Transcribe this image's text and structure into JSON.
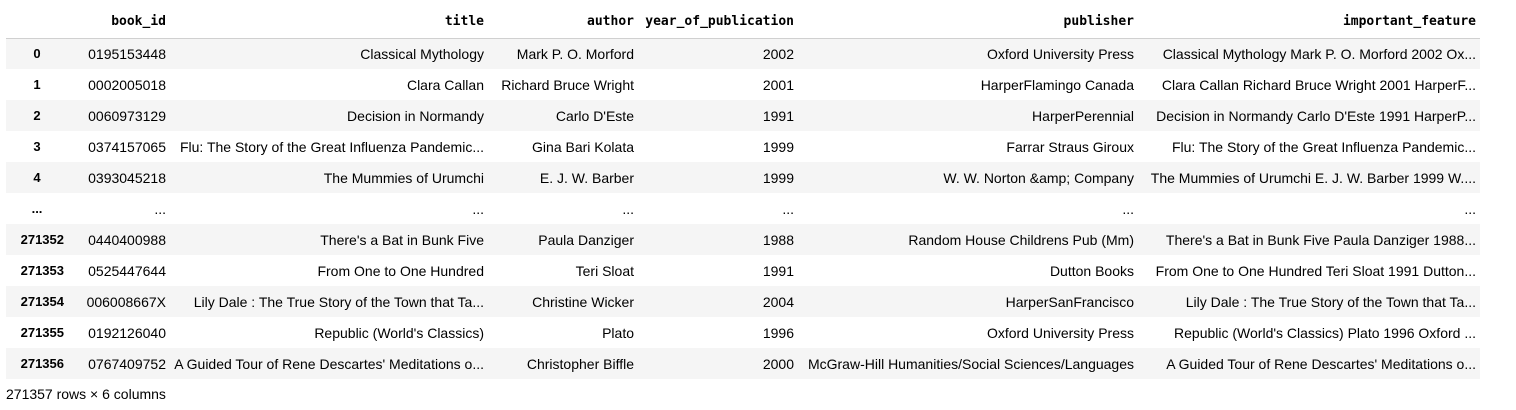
{
  "columns": {
    "index": "",
    "book_id": "book_id",
    "title": "title",
    "author": "author",
    "year_of_publication": "year_of_publication",
    "publisher": "publisher",
    "important_feature": "important_feature"
  },
  "rows": [
    {
      "index": "0",
      "book_id": "0195153448",
      "title": "Classical Mythology",
      "author": "Mark P. O. Morford",
      "year": "2002",
      "publisher": "Oxford University Press",
      "feature": "Classical Mythology Mark P. O. Morford 2002 Ox..."
    },
    {
      "index": "1",
      "book_id": "0002005018",
      "title": "Clara Callan",
      "author": "Richard Bruce Wright",
      "year": "2001",
      "publisher": "HarperFlamingo Canada",
      "feature": "Clara Callan Richard Bruce Wright 2001 HarperF..."
    },
    {
      "index": "2",
      "book_id": "0060973129",
      "title": "Decision in Normandy",
      "author": "Carlo D'Este",
      "year": "1991",
      "publisher": "HarperPerennial",
      "feature": "Decision in Normandy Carlo D'Este 1991 HarperP..."
    },
    {
      "index": "3",
      "book_id": "0374157065",
      "title": "Flu: The Story of the Great Influenza Pandemic...",
      "author": "Gina Bari Kolata",
      "year": "1999",
      "publisher": "Farrar Straus Giroux",
      "feature": "Flu: The Story of the Great Influenza Pandemic..."
    },
    {
      "index": "4",
      "book_id": "0393045218",
      "title": "The Mummies of Urumchi",
      "author": "E. J. W. Barber",
      "year": "1999",
      "publisher": "W. W. Norton &amp; Company",
      "feature": "The Mummies of Urumchi E. J. W. Barber 1999 W...."
    },
    {
      "index": "...",
      "book_id": "...",
      "title": "...",
      "author": "...",
      "year": "...",
      "publisher": "...",
      "feature": "..."
    },
    {
      "index": "271352",
      "book_id": "0440400988",
      "title": "There's a Bat in Bunk Five",
      "author": "Paula Danziger",
      "year": "1988",
      "publisher": "Random House Childrens Pub (Mm)",
      "feature": "There's a Bat in Bunk Five Paula Danziger 1988..."
    },
    {
      "index": "271353",
      "book_id": "0525447644",
      "title": "From One to One Hundred",
      "author": "Teri Sloat",
      "year": "1991",
      "publisher": "Dutton Books",
      "feature": "From One to One Hundred Teri Sloat 1991 Dutton..."
    },
    {
      "index": "271354",
      "book_id": "006008667X",
      "title": "Lily Dale : The True Story of the Town that Ta...",
      "author": "Christine Wicker",
      "year": "2004",
      "publisher": "HarperSanFrancisco",
      "feature": "Lily Dale : The True Story of the Town that Ta..."
    },
    {
      "index": "271355",
      "book_id": "0192126040",
      "title": "Republic (World's Classics)",
      "author": "Plato",
      "year": "1996",
      "publisher": "Oxford University Press",
      "feature": "Republic (World's Classics) Plato 1996 Oxford ..."
    },
    {
      "index": "271356",
      "book_id": "0767409752",
      "title": "A Guided Tour of Rene Descartes' Meditations o...",
      "author": "Christopher Biffle",
      "year": "2000",
      "publisher": "McGraw-Hill Humanities/Social Sciences/Languages",
      "feature": "A Guided Tour of Rene Descartes' Meditations o..."
    }
  ],
  "shape_note": "271357 rows × 6 columns"
}
